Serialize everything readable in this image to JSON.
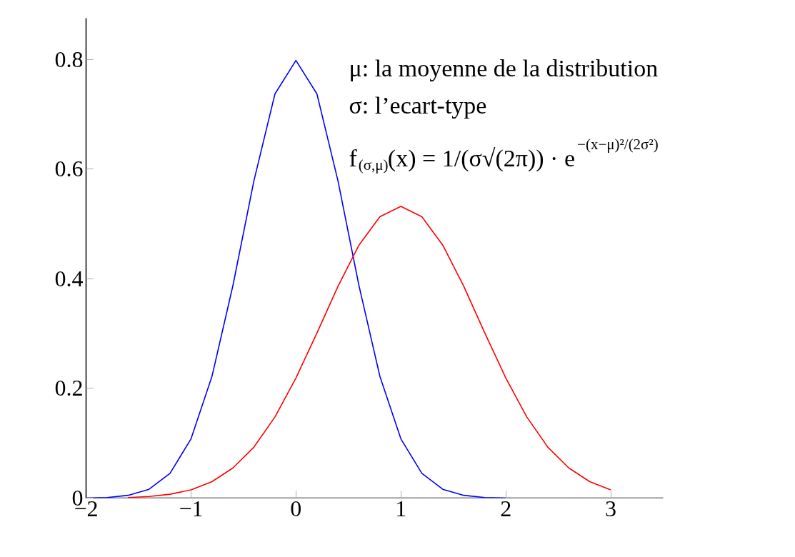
{
  "chart_data": {
    "type": "line",
    "annotations": [
      "μ: la moyenne de la distribution",
      "σ: l’ecart-type",
      "f$_{(σ,μ)}$(x) = 1/(σ√(2π)) · e$^{−(x−μ)²/(2σ²)}$"
    ],
    "x": [
      -2,
      -1.8,
      -1.6,
      -1.4,
      -1.2,
      -1,
      -0.8,
      -0.6,
      -0.4,
      -0.2,
      0,
      0.2,
      0.4,
      0.6,
      0.8,
      1,
      1.2,
      1.4,
      1.6,
      1.8,
      2,
      2.2,
      2.4,
      2.6,
      2.8,
      3
    ],
    "series": [
      {
        "color": "#0000ff",
        "values": [
          0,
          0.001,
          0.005,
          0.016,
          0.045,
          0.108,
          0.222,
          0.388,
          0.579,
          0.737,
          0.798,
          0.737,
          0.579,
          0.388,
          0.222,
          0.108,
          0.045,
          0.016,
          0.005,
          0.001,
          0,
          null,
          null,
          null,
          null,
          null
        ]
      },
      {
        "color": "#ff0000",
        "values": [
          null,
          null,
          0.001,
          0.003,
          0.007,
          0.015,
          0.03,
          0.055,
          0.093,
          0.148,
          0.219,
          0.301,
          0.386,
          0.461,
          0.513,
          0.532,
          0.513,
          0.461,
          0.386,
          0.301,
          0.219,
          0.148,
          0.093,
          0.055,
          0.03,
          0.015
        ]
      }
    ],
    "xlim": [
      -2,
      3.5
    ],
    "ylim": [
      0,
      0.875
    ],
    "xticks": [
      -2,
      -1,
      0,
      1,
      2,
      3
    ],
    "yticks": [
      0,
      0.2,
      0.4,
      0.6,
      0.8
    ],
    "grid": false
  }
}
